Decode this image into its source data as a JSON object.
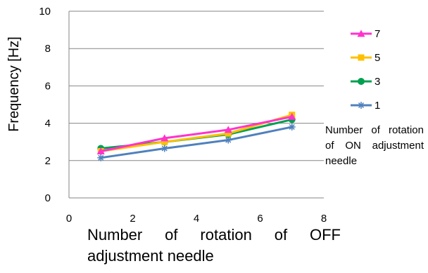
{
  "chart_data": {
    "type": "line",
    "title": "",
    "xlabel": "Number of rotation of OFF adjustment needle",
    "ylabel": "Frequency [Hz]",
    "xlim": [
      0,
      8
    ],
    "ylim": [
      0,
      10
    ],
    "xticks": [
      0,
      2,
      4,
      6,
      8
    ],
    "yticks": [
      0,
      2,
      4,
      6,
      8,
      10
    ],
    "grid": "horizontal",
    "legend_position": "right",
    "legend_title": "Number of rotation of ON adjustment needle",
    "x": [
      1,
      3,
      5,
      7
    ],
    "series": [
      {
        "name": "7",
        "values": [
          2.5,
          3.2,
          3.65,
          4.35
        ],
        "color": "#ff33cc",
        "marker": "triangle"
      },
      {
        "name": "5",
        "values": [
          2.5,
          3.0,
          3.45,
          4.45
        ],
        "color": "#ffc000",
        "marker": "square"
      },
      {
        "name": "3",
        "values": [
          2.65,
          3.0,
          3.4,
          4.2
        ],
        "color": "#00a050",
        "marker": "circle"
      },
      {
        "name": "1",
        "values": [
          2.15,
          2.65,
          3.1,
          3.8
        ],
        "color": "#4f81bd",
        "marker": "star"
      }
    ]
  }
}
